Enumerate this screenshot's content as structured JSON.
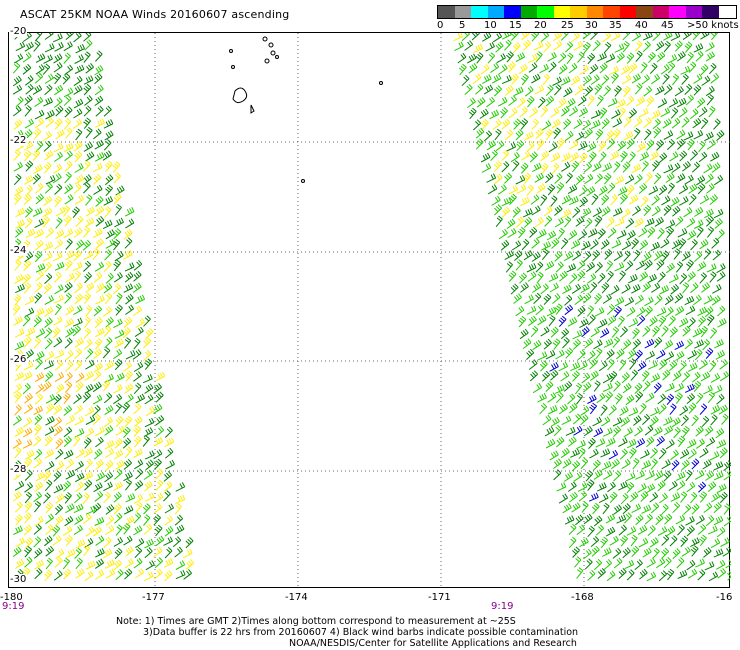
{
  "title": "ASCAT 25KM NOAA Winds 20160607 ascending",
  "legend": {
    "colors": [
      "#555555",
      "#999999",
      "#00ffff",
      "#00aaff",
      "#0000ff",
      "#00aa00",
      "#00ff00",
      "#ffff00",
      "#ffcc00",
      "#ff8800",
      "#ff4400",
      "#ff0000",
      "#8b4513",
      "#cc0066",
      "#ff00ff",
      "#9900cc",
      "#330066"
    ],
    "labels": [
      "0",
      "5",
      "10",
      "15",
      "20",
      "25",
      "30",
      "35",
      "40",
      "45",
      ">50 knots"
    ]
  },
  "map": {
    "lat_labels": [
      "-20",
      "-22",
      "-24",
      "-26",
      "-28",
      "-30"
    ],
    "lon_labels": [
      "-180",
      "-177",
      "-174",
      "-171",
      "-168",
      "-16"
    ],
    "time_labels": [
      "9:19",
      "9:19"
    ],
    "barb_colors": {
      "green_dark": "#008000",
      "green": "#22cc00",
      "yellow": "#ffee00",
      "orange": "#ffaa00",
      "blue": "#0000cc"
    }
  },
  "notes": {
    "line1": "Note: 1) Times are GMT 2)Times along bottom correspond to measurement at ~25S",
    "line2": "3)Data buffer is 22 hrs from 20160607 4) Black wind barbs indicate possible contamination",
    "line3": "NOAA/NESDIS/Center for Satellite Applications and Research"
  }
}
